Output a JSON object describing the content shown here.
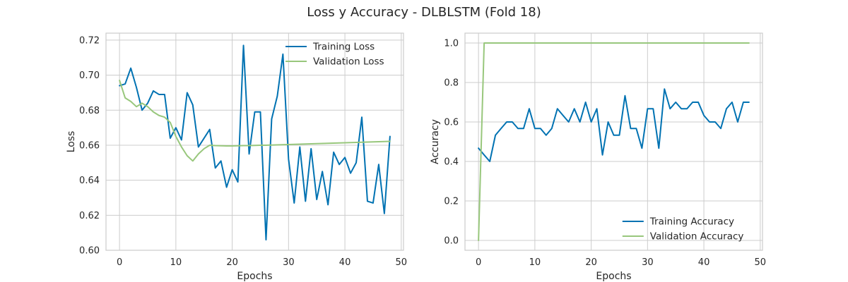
{
  "figure": {
    "title": "Loss y Accuracy - DLBLSTM (Fold 18)"
  },
  "colors": {
    "training": "#0072b2",
    "validation": "#98c77c",
    "grid": "#cccccc",
    "axes_edge": "#cccccc",
    "text": "#262626"
  },
  "chart_data": [
    {
      "type": "line",
      "xlabel": "Epochs",
      "ylabel": "Loss",
      "xlim": [
        -2.4,
        50.4
      ],
      "ylim": [
        0.6,
        0.724
      ],
      "xticks": [
        0,
        10,
        20,
        30,
        40,
        50
      ],
      "xtick_labels": [
        "0",
        "10",
        "20",
        "30",
        "40",
        "50"
      ],
      "yticks": [
        0.6,
        0.62,
        0.64,
        0.66,
        0.68,
        0.7,
        0.72
      ],
      "ytick_labels": [
        "0.60",
        "0.62",
        "0.64",
        "0.66",
        "0.68",
        "0.70",
        "0.72"
      ],
      "grid": true,
      "legend_position": "top-right",
      "series": [
        {
          "name": "Training Loss",
          "color_key": "training",
          "x": [
            0,
            1,
            2,
            3,
            4,
            5,
            6,
            7,
            8,
            9,
            10,
            11,
            12,
            13,
            14,
            15,
            16,
            17,
            18,
            19,
            20,
            21,
            22,
            23,
            24,
            25,
            26,
            27,
            28,
            29,
            30,
            31,
            32,
            33,
            34,
            35,
            36,
            37,
            38,
            39,
            40,
            41,
            42,
            43,
            44,
            45,
            46,
            47,
            48
          ],
          "values": [
            0.694,
            0.695,
            0.704,
            0.693,
            0.68,
            0.684,
            0.691,
            0.689,
            0.689,
            0.664,
            0.67,
            0.663,
            0.69,
            0.683,
            0.659,
            0.664,
            0.669,
            0.647,
            0.651,
            0.636,
            0.646,
            0.639,
            0.717,
            0.655,
            0.679,
            0.679,
            0.606,
            0.675,
            0.688,
            0.712,
            0.652,
            0.627,
            0.659,
            0.628,
            0.658,
            0.629,
            0.645,
            0.626,
            0.656,
            0.649,
            0.653,
            0.644,
            0.65,
            0.676,
            0.628,
            0.627,
            0.649,
            0.621,
            0.665
          ]
        },
        {
          "name": "Validation Loss",
          "color_key": "validation",
          "x": [
            0,
            1,
            2,
            3,
            4,
            5,
            6,
            7,
            8,
            9,
            10,
            11,
            12,
            13,
            14,
            15,
            16,
            17,
            18,
            19,
            20,
            21,
            22,
            23,
            24,
            25,
            26,
            27,
            28,
            29,
            30,
            31,
            32,
            33,
            34,
            35,
            36,
            37,
            38,
            39,
            40,
            41,
            42,
            43,
            44,
            45,
            46,
            47,
            48
          ],
          "values": [
            0.697,
            0.687,
            0.685,
            0.682,
            0.684,
            0.682,
            0.679,
            0.677,
            0.676,
            0.673,
            0.665,
            0.659,
            0.654,
            0.651,
            0.655,
            0.658,
            0.66,
            0.6598,
            0.6597,
            0.6596,
            0.6596,
            0.6597,
            0.6598,
            0.6598,
            0.6599,
            0.66,
            0.66,
            0.6601,
            0.6602,
            0.6603,
            0.6604,
            0.6605,
            0.6606,
            0.6607,
            0.6608,
            0.6609,
            0.661,
            0.6611,
            0.6612,
            0.6613,
            0.6614,
            0.6615,
            0.6616,
            0.6617,
            0.6618,
            0.6619,
            0.662,
            0.6621,
            0.6622
          ]
        }
      ]
    },
    {
      "type": "line",
      "xlabel": "Epochs",
      "ylabel": "Accuracy",
      "xlim": [
        -2.4,
        50.4
      ],
      "ylim": [
        -0.05,
        1.05
      ],
      "xticks": [
        0,
        10,
        20,
        30,
        40,
        50
      ],
      "xtick_labels": [
        "0",
        "10",
        "20",
        "30",
        "40",
        "50"
      ],
      "yticks": [
        0.0,
        0.2,
        0.4,
        0.6,
        0.8,
        1.0
      ],
      "ytick_labels": [
        "0.0",
        "0.2",
        "0.4",
        "0.6",
        "0.8",
        "1.0"
      ],
      "grid": true,
      "legend_position": "bottom-right",
      "series": [
        {
          "name": "Training Accuracy",
          "color_key": "training",
          "x": [
            0,
            1,
            2,
            3,
            4,
            5,
            6,
            7,
            8,
            9,
            10,
            11,
            12,
            13,
            14,
            15,
            16,
            17,
            18,
            19,
            20,
            21,
            22,
            23,
            24,
            25,
            26,
            27,
            28,
            29,
            30,
            31,
            32,
            33,
            34,
            35,
            36,
            37,
            38,
            39,
            40,
            41,
            42,
            43,
            44,
            45,
            46,
            47,
            48
          ],
          "values": [
            0.467,
            0.433,
            0.4,
            0.533,
            0.567,
            0.6,
            0.6,
            0.567,
            0.567,
            0.667,
            0.567,
            0.567,
            0.533,
            0.567,
            0.667,
            0.633,
            0.6,
            0.667,
            0.6,
            0.7,
            0.6,
            0.667,
            0.433,
            0.6,
            0.533,
            0.533,
            0.733,
            0.567,
            0.567,
            0.467,
            0.667,
            0.667,
            0.467,
            0.767,
            0.667,
            0.7,
            0.667,
            0.667,
            0.7,
            0.7,
            0.633,
            0.6,
            0.6,
            0.567,
            0.667,
            0.7,
            0.6,
            0.7,
            0.7
          ]
        },
        {
          "name": "Validation Accuracy",
          "color_key": "validation",
          "x": [
            0,
            1,
            2,
            3,
            4,
            5,
            6,
            7,
            8,
            9,
            10,
            11,
            12,
            13,
            14,
            15,
            16,
            17,
            18,
            19,
            20,
            21,
            22,
            23,
            24,
            25,
            26,
            27,
            28,
            29,
            30,
            31,
            32,
            33,
            34,
            35,
            36,
            37,
            38,
            39,
            40,
            41,
            42,
            43,
            44,
            45,
            46,
            47,
            48
          ],
          "values": [
            0.0,
            1.0,
            1.0,
            1.0,
            1.0,
            1.0,
            1.0,
            1.0,
            1.0,
            1.0,
            1.0,
            1.0,
            1.0,
            1.0,
            1.0,
            1.0,
            1.0,
            1.0,
            1.0,
            1.0,
            1.0,
            1.0,
            1.0,
            1.0,
            1.0,
            1.0,
            1.0,
            1.0,
            1.0,
            1.0,
            1.0,
            1.0,
            1.0,
            1.0,
            1.0,
            1.0,
            1.0,
            1.0,
            1.0,
            1.0,
            1.0,
            1.0,
            1.0,
            1.0,
            1.0,
            1.0,
            1.0,
            1.0,
            1.0
          ]
        }
      ]
    }
  ]
}
